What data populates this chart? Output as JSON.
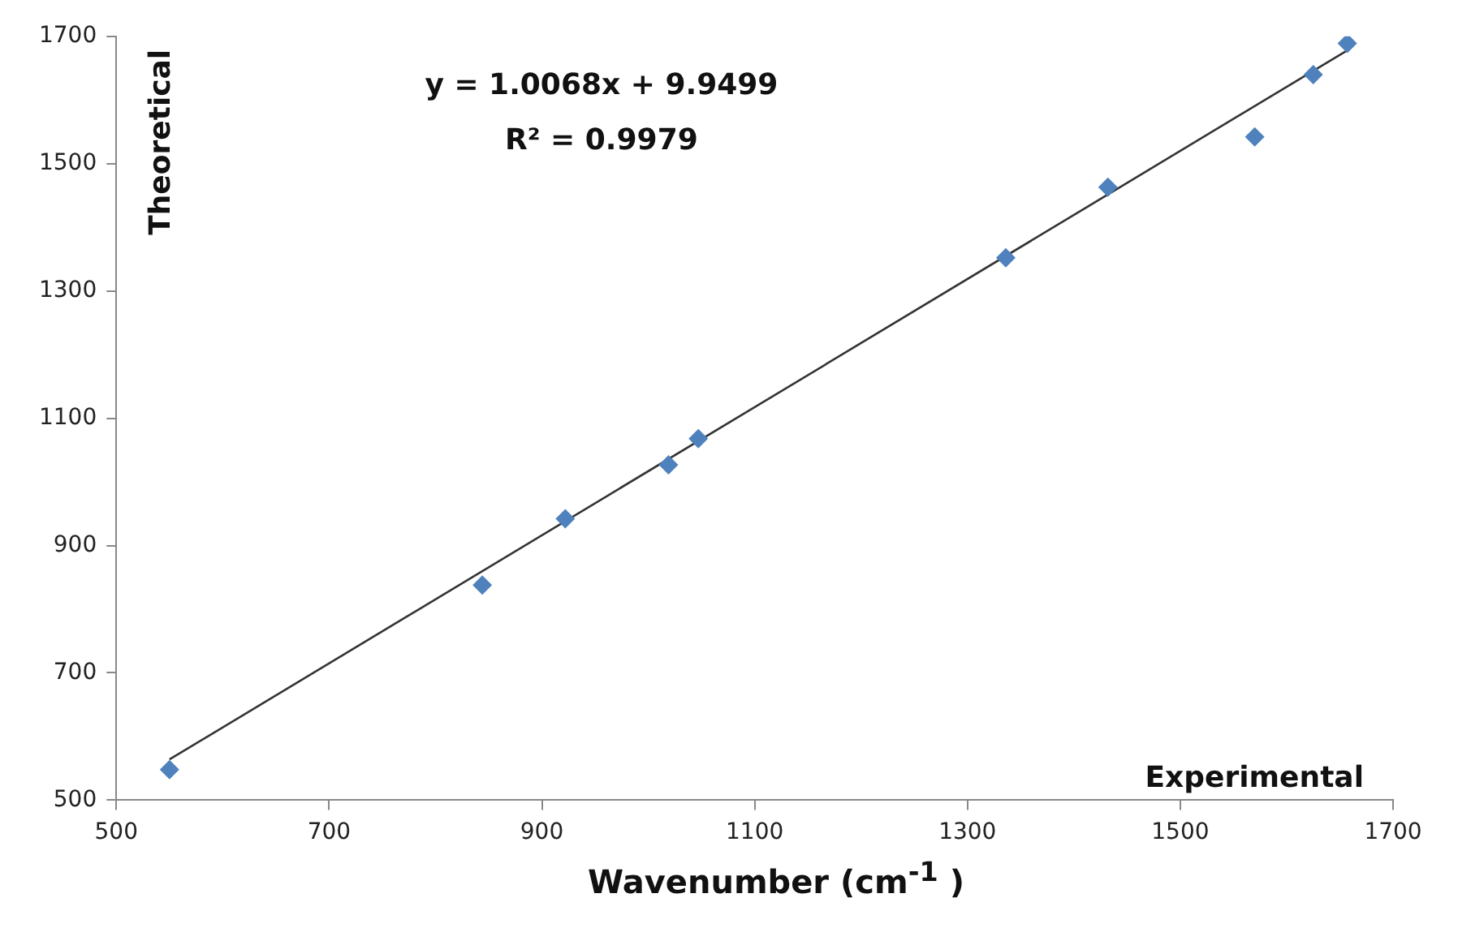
{
  "chart_data": {
    "type": "scatter",
    "xlabel": "Wavenumber (cm$^{-1}$ )",
    "ylabel": "Theoretical",
    "annotations": [
      "y = 1.0068x + 9.9499",
      "R² = 0.9979",
      "Experimental"
    ],
    "x": [
      550,
      844,
      922,
      1019,
      1047,
      1336,
      1432,
      1570,
      1625,
      1657
    ],
    "series": [
      {
        "color": "#4f81bd",
        "marker": "diamond",
        "values": [
          548,
          838,
          942,
          1027,
          1068,
          1352,
          1463,
          1542,
          1640,
          1689
        ]
      },
      {
        "type": "line",
        "color": "#333333",
        "marker": "none",
        "line_style": "solid",
        "x": [
          550,
          1657
        ],
        "values": [
          564,
          1678
        ]
      }
    ],
    "xlim": [
      500,
      1700
    ],
    "xticks": [
      500,
      700,
      900,
      1100,
      1300,
      1500,
      1700
    ],
    "ylim": [
      500,
      1700
    ],
    "yticks": [
      500,
      700,
      900,
      1100,
      1300,
      1500,
      1700
    ],
    "grid": false,
    "legend": false
  }
}
